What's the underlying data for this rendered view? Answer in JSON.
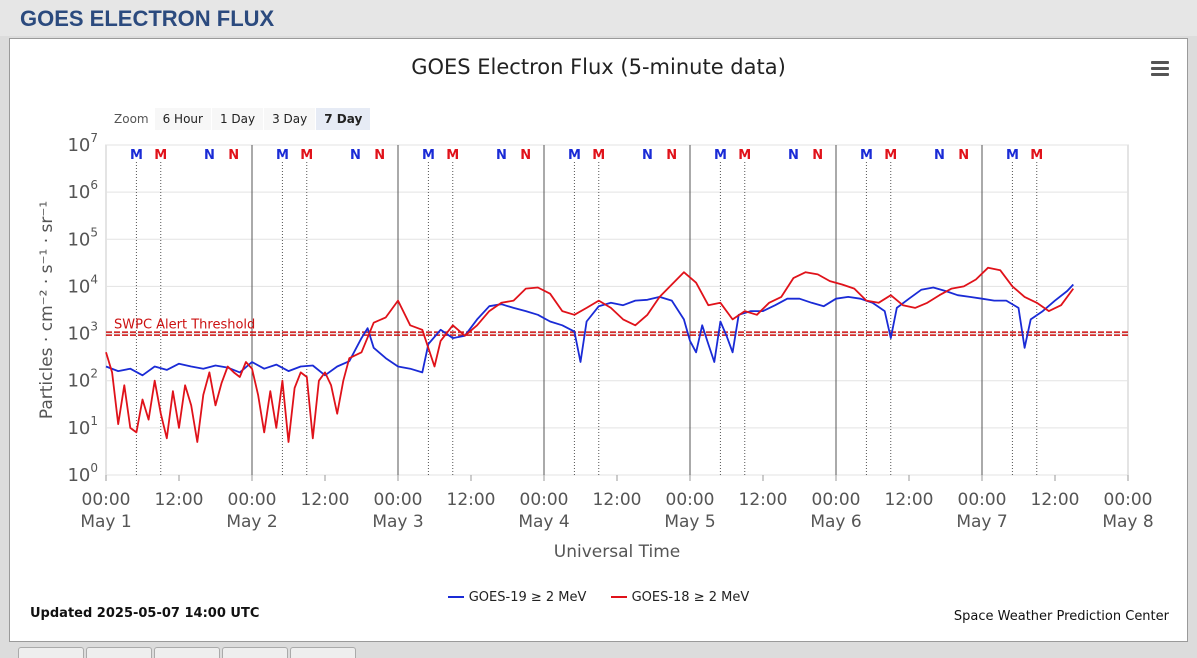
{
  "page": {
    "header_title": "GOES ELECTRON FLUX"
  },
  "chart": {
    "zoom_label": "Zoom",
    "zoom_buttons": [
      "6 Hour",
      "1 Day",
      "3 Day",
      "7 Day"
    ],
    "zoom_active": "7 Day",
    "updated": "Updated 2025-05-07 14:00 UTC",
    "credit": "Space Weather Prediction Center"
  },
  "colors": {
    "goes19": "#1a2bd6",
    "goes18": "#e0121a",
    "threshold": "#cc1111",
    "header": "#2b4a7e"
  },
  "chart_data": {
    "type": "line",
    "title": "GOES Electron Flux (5-minute data)",
    "xlabel": "Universal Time",
    "ylabel": "Particles · cm⁻² · s⁻¹ · sr⁻¹",
    "yscale": "log",
    "ylim": [
      1,
      10000000
    ],
    "xlim_hours": [
      0,
      168
    ],
    "y_ticks": [
      {
        "base": "10",
        "exp": "0",
        "value": 1
      },
      {
        "base": "10",
        "exp": "1",
        "value": 10
      },
      {
        "base": "10",
        "exp": "2",
        "value": 100
      },
      {
        "base": "10",
        "exp": "3",
        "value": 1000
      },
      {
        "base": "10",
        "exp": "4",
        "value": 10000
      },
      {
        "base": "10",
        "exp": "5",
        "value": 100000
      },
      {
        "base": "10",
        "exp": "6",
        "value": 1000000
      },
      {
        "base": "10",
        "exp": "7",
        "value": 10000000
      }
    ],
    "x_ticks": [
      {
        "hour": 0,
        "time": "00:00",
        "date": "May 1"
      },
      {
        "hour": 12,
        "time": "12:00",
        "date": ""
      },
      {
        "hour": 24,
        "time": "00:00",
        "date": "May 2"
      },
      {
        "hour": 36,
        "time": "12:00",
        "date": ""
      },
      {
        "hour": 48,
        "time": "00:00",
        "date": "May 3"
      },
      {
        "hour": 60,
        "time": "12:00",
        "date": ""
      },
      {
        "hour": 72,
        "time": "00:00",
        "date": "May 4"
      },
      {
        "hour": 84,
        "time": "12:00",
        "date": ""
      },
      {
        "hour": 96,
        "time": "00:00",
        "date": "May 5"
      },
      {
        "hour": 108,
        "time": "12:00",
        "date": ""
      },
      {
        "hour": 120,
        "time": "00:00",
        "date": "May 6"
      },
      {
        "hour": 132,
        "time": "12:00",
        "date": ""
      },
      {
        "hour": 144,
        "time": "00:00",
        "date": "May 7"
      },
      {
        "hour": 156,
        "time": "12:00",
        "date": ""
      },
      {
        "hour": 168,
        "time": "00:00",
        "date": "May 8"
      }
    ],
    "threshold": {
      "value": 1000,
      "label": "SWPC Alert Threshold"
    },
    "markers": [
      {
        "hour": 5,
        "label": "M",
        "color": "blue"
      },
      {
        "hour": 9,
        "label": "M",
        "color": "red"
      },
      {
        "hour": 17,
        "label": "N",
        "color": "blue"
      },
      {
        "hour": 21,
        "label": "N",
        "color": "red"
      },
      {
        "hour": 29,
        "label": "M",
        "color": "blue"
      },
      {
        "hour": 33,
        "label": "M",
        "color": "red"
      },
      {
        "hour": 41,
        "label": "N",
        "color": "blue"
      },
      {
        "hour": 45,
        "label": "N",
        "color": "red"
      },
      {
        "hour": 53,
        "label": "M",
        "color": "blue"
      },
      {
        "hour": 57,
        "label": "M",
        "color": "red"
      },
      {
        "hour": 65,
        "label": "N",
        "color": "blue"
      },
      {
        "hour": 69,
        "label": "N",
        "color": "red"
      },
      {
        "hour": 77,
        "label": "M",
        "color": "blue"
      },
      {
        "hour": 81,
        "label": "M",
        "color": "red"
      },
      {
        "hour": 89,
        "label": "N",
        "color": "blue"
      },
      {
        "hour": 93,
        "label": "N",
        "color": "red"
      },
      {
        "hour": 101,
        "label": "M",
        "color": "blue"
      },
      {
        "hour": 105,
        "label": "M",
        "color": "red"
      },
      {
        "hour": 113,
        "label": "N",
        "color": "blue"
      },
      {
        "hour": 117,
        "label": "N",
        "color": "red"
      },
      {
        "hour": 125,
        "label": "M",
        "color": "blue"
      },
      {
        "hour": 129,
        "label": "M",
        "color": "red"
      },
      {
        "hour": 137,
        "label": "N",
        "color": "blue"
      },
      {
        "hour": 141,
        "label": "N",
        "color": "red"
      },
      {
        "hour": 149,
        "label": "M",
        "color": "blue"
      },
      {
        "hour": 153,
        "label": "M",
        "color": "red"
      }
    ],
    "series": [
      {
        "name": "GOES-19 ≥ 2 MeV",
        "color": "#1a2bd6",
        "points": [
          [
            0,
            200
          ],
          [
            2,
            160
          ],
          [
            4,
            180
          ],
          [
            6,
            130
          ],
          [
            8,
            200
          ],
          [
            10,
            170
          ],
          [
            12,
            230
          ],
          [
            14,
            200
          ],
          [
            16,
            180
          ],
          [
            18,
            210
          ],
          [
            20,
            190
          ],
          [
            22,
            150
          ],
          [
            24,
            250
          ],
          [
            26,
            180
          ],
          [
            28,
            220
          ],
          [
            30,
            160
          ],
          [
            32,
            200
          ],
          [
            34,
            210
          ],
          [
            36,
            130
          ],
          [
            38,
            200
          ],
          [
            40,
            260
          ],
          [
            42,
            800
          ],
          [
            43,
            1300
          ],
          [
            44,
            500
          ],
          [
            46,
            300
          ],
          [
            48,
            200
          ],
          [
            50,
            180
          ],
          [
            52,
            150
          ],
          [
            53,
            600
          ],
          [
            55,
            1200
          ],
          [
            57,
            800
          ],
          [
            59,
            900
          ],
          [
            61,
            2000
          ],
          [
            63,
            3800
          ],
          [
            65,
            4200
          ],
          [
            67,
            3500
          ],
          [
            69,
            3000
          ],
          [
            71,
            2500
          ],
          [
            73,
            1800
          ],
          [
            75,
            1500
          ],
          [
            77,
            1100
          ],
          [
            78,
            250
          ],
          [
            79,
            1800
          ],
          [
            81,
            3800
          ],
          [
            83,
            4500
          ],
          [
            85,
            4000
          ],
          [
            87,
            5000
          ],
          [
            89,
            5200
          ],
          [
            91,
            6000
          ],
          [
            93,
            5000
          ],
          [
            95,
            2000
          ],
          [
            96,
            700
          ],
          [
            97,
            400
          ],
          [
            98,
            1500
          ],
          [
            99,
            600
          ],
          [
            100,
            250
          ],
          [
            101,
            1800
          ],
          [
            102,
            900
          ],
          [
            103,
            400
          ],
          [
            104,
            2500
          ],
          [
            106,
            3000
          ],
          [
            108,
            3000
          ],
          [
            110,
            4000
          ],
          [
            112,
            5500
          ],
          [
            114,
            5500
          ],
          [
            116,
            4500
          ],
          [
            118,
            3800
          ],
          [
            120,
            5500
          ],
          [
            122,
            6000
          ],
          [
            124,
            5500
          ],
          [
            126,
            4500
          ],
          [
            128,
            3000
          ],
          [
            129,
            800
          ],
          [
            130,
            3500
          ],
          [
            132,
            5500
          ],
          [
            134,
            8500
          ],
          [
            136,
            9500
          ],
          [
            138,
            8000
          ],
          [
            140,
            6500
          ],
          [
            142,
            6000
          ],
          [
            144,
            5500
          ],
          [
            146,
            5000
          ],
          [
            148,
            5000
          ],
          [
            150,
            3500
          ],
          [
            151,
            500
          ],
          [
            152,
            2000
          ],
          [
            154,
            3000
          ],
          [
            156,
            5000
          ],
          [
            158,
            8000
          ],
          [
            159,
            11000
          ]
        ]
      },
      {
        "name": "GOES-18 ≥ 2 MeV",
        "color": "#e0121a",
        "points": [
          [
            0,
            400
          ],
          [
            1,
            150
          ],
          [
            2,
            12
          ],
          [
            3,
            80
          ],
          [
            4,
            10
          ],
          [
            5,
            8
          ],
          [
            6,
            40
          ],
          [
            7,
            15
          ],
          [
            8,
            100
          ],
          [
            9,
            20
          ],
          [
            10,
            6
          ],
          [
            11,
            60
          ],
          [
            12,
            10
          ],
          [
            13,
            80
          ],
          [
            14,
            30
          ],
          [
            15,
            5
          ],
          [
            16,
            50
          ],
          [
            17,
            150
          ],
          [
            18,
            30
          ],
          [
            19,
            90
          ],
          [
            20,
            200
          ],
          [
            21,
            150
          ],
          [
            22,
            120
          ],
          [
            23,
            250
          ],
          [
            24,
            180
          ],
          [
            25,
            50
          ],
          [
            26,
            8
          ],
          [
            27,
            60
          ],
          [
            28,
            10
          ],
          [
            29,
            100
          ],
          [
            30,
            5
          ],
          [
            31,
            70
          ],
          [
            32,
            150
          ],
          [
            33,
            120
          ],
          [
            34,
            6
          ],
          [
            35,
            100
          ],
          [
            36,
            150
          ],
          [
            37,
            80
          ],
          [
            38,
            20
          ],
          [
            39,
            100
          ],
          [
            40,
            300
          ],
          [
            42,
            400
          ],
          [
            44,
            1700
          ],
          [
            46,
            2200
          ],
          [
            48,
            5000
          ],
          [
            50,
            1500
          ],
          [
            52,
            1200
          ],
          [
            54,
            200
          ],
          [
            55,
            700
          ],
          [
            57,
            1500
          ],
          [
            59,
            900
          ],
          [
            61,
            1500
          ],
          [
            63,
            3000
          ],
          [
            65,
            4500
          ],
          [
            67,
            5000
          ],
          [
            69,
            9000
          ],
          [
            71,
            9500
          ],
          [
            73,
            7000
          ],
          [
            75,
            3000
          ],
          [
            77,
            2500
          ],
          [
            79,
            3500
          ],
          [
            81,
            5000
          ],
          [
            83,
            3500
          ],
          [
            85,
            2000
          ],
          [
            87,
            1500
          ],
          [
            89,
            2500
          ],
          [
            91,
            6000
          ],
          [
            93,
            11000
          ],
          [
            95,
            20000
          ],
          [
            97,
            12000
          ],
          [
            99,
            4000
          ],
          [
            101,
            4500
          ],
          [
            103,
            2000
          ],
          [
            105,
            3000
          ],
          [
            107,
            2500
          ],
          [
            109,
            4500
          ],
          [
            111,
            6000
          ],
          [
            113,
            15000
          ],
          [
            115,
            20000
          ],
          [
            117,
            18000
          ],
          [
            119,
            13000
          ],
          [
            121,
            11000
          ],
          [
            123,
            9000
          ],
          [
            125,
            5000
          ],
          [
            127,
            4500
          ],
          [
            129,
            6500
          ],
          [
            131,
            4000
          ],
          [
            133,
            3500
          ],
          [
            135,
            4500
          ],
          [
            137,
            6500
          ],
          [
            139,
            9000
          ],
          [
            141,
            10000
          ],
          [
            143,
            14000
          ],
          [
            145,
            25000
          ],
          [
            147,
            22000
          ],
          [
            149,
            10000
          ],
          [
            151,
            6000
          ],
          [
            153,
            4500
          ],
          [
            155,
            3000
          ],
          [
            157,
            4000
          ],
          [
            159,
            9000
          ]
        ]
      }
    ]
  }
}
